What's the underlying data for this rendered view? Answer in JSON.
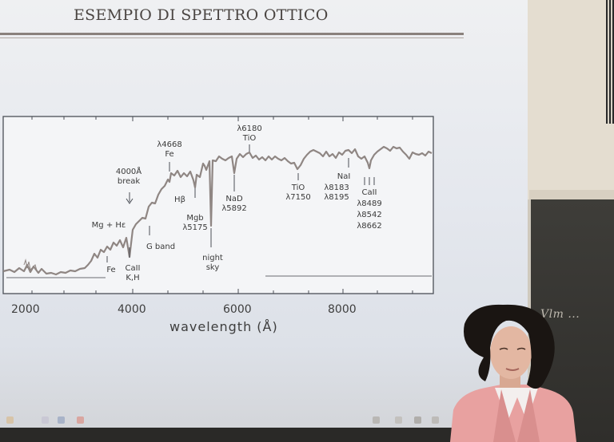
{
  "slide": {
    "title": "ESEMPIO DI SPETTRO OTTICO",
    "x_ticks": [
      "2000",
      "4000",
      "6000",
      "8000"
    ],
    "x_axis_label": "wavelength (Å)"
  },
  "annotations": {
    "mgh": "Mg + Hε",
    "fe_low": "Fe",
    "break_4000": "4000Å",
    "break_word": "break",
    "caii_kh_1": "CaII",
    "caii_kh_2": "K,H",
    "g_band": "G band",
    "fe_4668_1": "λ4668",
    "fe_4668_2": "Fe",
    "hbeta": "Hβ",
    "mgb_1": "Mgb",
    "mgb_2": "λ5175",
    "night_1": "night",
    "night_2": "sky",
    "nad_1": "NaD",
    "nad_2": "λ5892",
    "tio_6180_1": "λ6180",
    "tio_6180_2": "TiO",
    "tio_7150_1": "TiO",
    "tio_7150_2": "λ7150",
    "nai_1": "NaI",
    "nai_2": "λ8183",
    "nai_3": "λ8195",
    "caii_trip_1": "CaII",
    "caii_trip_2": "λ8489",
    "caii_trip_3": "λ8542",
    "caii_trip_4": "λ8662"
  },
  "board": {
    "handwriting": "Vlm ..."
  },
  "colors": {
    "spectrum": "#8f8683",
    "frame": "#4b4f57",
    "screen": "#eceef1",
    "blackboard": "#353431",
    "jacket": "#e8a1a0"
  },
  "icons": [
    "presenter-person",
    "taskbar-icons"
  ]
}
